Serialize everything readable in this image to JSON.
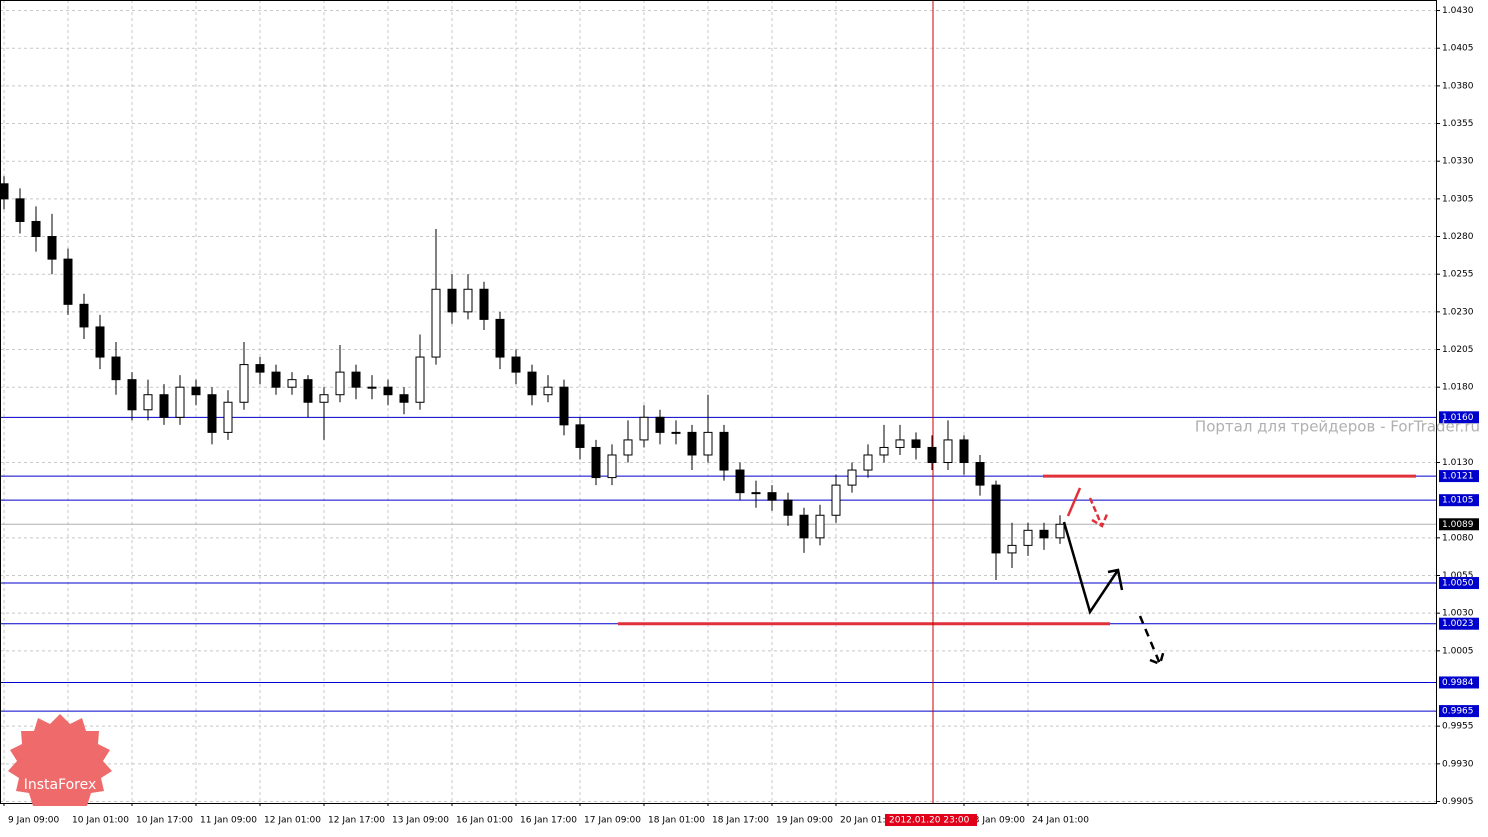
{
  "chart_data": {
    "type": "candlestick",
    "cursor_label": "2012.01.20 23:00",
    "watermark": "Портал для трейдеров - ForTrader.ru",
    "logo": "InstaForex",
    "categories": [
      "9 Jan 09:00",
      null,
      null,
      null,
      "10 Jan 01:00",
      null,
      null,
      null,
      "10 Jan 17:00",
      null,
      null,
      null,
      "11 Jan 09:00",
      null,
      null,
      null,
      "12 Jan 01:00",
      null,
      null,
      null,
      "12 Jan 17:00",
      null,
      null,
      null,
      "13 Jan 09:00",
      null,
      null,
      null,
      "16 Jan 01:00",
      null,
      null,
      null,
      "16 Jan 17:00",
      null,
      null,
      null,
      "17 Jan 09:00",
      null,
      null,
      null,
      "18 Jan 01:00",
      null,
      null,
      null,
      "18 Jan 17:00",
      null,
      null,
      null,
      "19 Jan 09:00",
      null,
      null,
      null,
      "20 Jan 01:00",
      null,
      null,
      null,
      null,
      null,
      null,
      null,
      "23 Jan 09:00",
      null,
      null,
      null,
      "24 Jan 01:00",
      null,
      null
    ],
    "open": [
      1.0315,
      1.0305,
      1.029,
      1.028,
      1.0265,
      1.0235,
      1.022,
      1.02,
      1.0185,
      1.0165,
      1.0175,
      1.016,
      1.018,
      1.0175,
      1.015,
      1.017,
      1.0195,
      1.019,
      1.018,
      1.0185,
      1.017,
      1.0175,
      1.019,
      1.018,
      1.018,
      1.0175,
      1.017,
      1.02,
      1.0245,
      1.023,
      1.0245,
      1.0225,
      1.02,
      1.019,
      1.0175,
      1.018,
      1.0155,
      1.014,
      1.012,
      1.0135,
      1.0145,
      1.016,
      1.015,
      1.015,
      1.0135,
      1.015,
      1.0125,
      1.011,
      1.011,
      1.0105,
      1.0095,
      1.008,
      1.0095,
      1.0115,
      1.0125,
      1.0135,
      1.014,
      1.0145,
      1.014,
      1.013,
      1.0145,
      1.013,
      1.0115,
      1.007,
      1.0075,
      1.0085,
      1.008
    ],
    "high": [
      1.032,
      1.0312,
      1.03,
      1.0295,
      1.0272,
      1.0242,
      1.0228,
      1.021,
      1.019,
      1.0185,
      1.0182,
      1.0188,
      1.0185,
      1.018,
      1.0178,
      1.021,
      1.02,
      1.0195,
      1.019,
      1.0188,
      1.018,
      1.0208,
      1.0195,
      1.0188,
      1.0185,
      1.018,
      1.0215,
      1.0285,
      1.0255,
      1.0255,
      1.025,
      1.023,
      1.0205,
      1.0195,
      1.0188,
      1.0185,
      1.016,
      1.0145,
      1.0142,
      1.0158,
      1.0168,
      1.0165,
      1.0158,
      1.0155,
      1.0175,
      1.0155,
      1.013,
      1.0118,
      1.0115,
      1.011,
      1.01,
      1.0102,
      1.0122,
      1.013,
      1.0142,
      1.0155,
      1.0155,
      1.015,
      1.0148,
      1.0158,
      1.0148,
      1.0135,
      1.0118,
      1.009,
      1.009,
      1.009,
      1.0095
    ],
    "low": [
      1.0298,
      1.0282,
      1.027,
      1.0255,
      1.0228,
      1.0212,
      1.0192,
      1.0175,
      1.0158,
      1.0158,
      1.0155,
      1.0155,
      1.0168,
      1.0142,
      1.0145,
      1.0165,
      1.0182,
      1.0175,
      1.0175,
      1.016,
      1.0145,
      1.017,
      1.0172,
      1.0172,
      1.0168,
      1.0162,
      1.0165,
      1.0195,
      1.0222,
      1.0225,
      1.0218,
      1.0192,
      1.0182,
      1.0168,
      1.017,
      1.0148,
      1.0132,
      1.0115,
      1.0115,
      1.013,
      1.014,
      1.0142,
      1.0142,
      1.0125,
      1.013,
      1.0118,
      1.0105,
      1.01,
      1.0098,
      1.0088,
      1.007,
      1.0075,
      1.009,
      1.011,
      1.012,
      1.013,
      1.0135,
      1.0132,
      1.0125,
      1.0125,
      1.0122,
      1.0108,
      1.0052,
      1.006,
      1.0068,
      1.0072,
      1.0076
    ],
    "close": [
      1.0305,
      1.029,
      1.028,
      1.0265,
      1.0235,
      1.022,
      1.02,
      1.0185,
      1.0165,
      1.0175,
      1.016,
      1.018,
      1.0175,
      1.015,
      1.017,
      1.0195,
      1.019,
      1.018,
      1.0185,
      1.017,
      1.0175,
      1.019,
      1.018,
      1.018,
      1.0175,
      1.017,
      1.02,
      1.0245,
      1.023,
      1.0245,
      1.0225,
      1.02,
      1.019,
      1.0175,
      1.018,
      1.0155,
      1.014,
      1.012,
      1.0135,
      1.0145,
      1.016,
      1.015,
      1.015,
      1.0135,
      1.015,
      1.0125,
      1.011,
      1.011,
      1.0105,
      1.0095,
      1.008,
      1.0095,
      1.0115,
      1.0125,
      1.0135,
      1.014,
      1.0145,
      1.014,
      1.013,
      1.0145,
      1.013,
      1.0115,
      1.007,
      1.0075,
      1.0085,
      1.008,
      1.0089
    ],
    "ylim": [
      0.9904,
      1.0437
    ],
    "yticks": [
      {
        "value": 1.043,
        "label": "1.0430"
      },
      {
        "value": 1.0405,
        "label": "1.0405"
      },
      {
        "value": 1.038,
        "label": "1.0380"
      },
      {
        "value": 1.0355,
        "label": "1.0355"
      },
      {
        "value": 1.033,
        "label": "1.0330"
      },
      {
        "value": 1.0305,
        "label": "1.0305"
      },
      {
        "value": 1.028,
        "label": "1.0280"
      },
      {
        "value": 1.0255,
        "label": "1.0255"
      },
      {
        "value": 1.023,
        "label": "1.0230"
      },
      {
        "value": 1.0205,
        "label": "1.0205"
      },
      {
        "value": 1.018,
        "label": "1.0180"
      },
      {
        "value": 1.013,
        "label": "1.0130"
      },
      {
        "value": 1.008,
        "label": "1.0080"
      },
      {
        "value": 1.0055,
        "label": "1.0055"
      },
      {
        "value": 1.003,
        "label": "1.0030"
      },
      {
        "value": 1.0005,
        "label": "1.0005"
      },
      {
        "value": 0.9955,
        "label": "0.9955"
      },
      {
        "value": 0.993,
        "label": "0.9930"
      },
      {
        "value": 0.9905,
        "label": "0.9905"
      }
    ],
    "levels": [
      {
        "value": 1.016,
        "label": "1.0160"
      },
      {
        "value": 1.0121,
        "label": "1.0121"
      },
      {
        "value": 1.0105,
        "label": "1.0105"
      },
      {
        "value": 1.005,
        "label": "1.0050"
      },
      {
        "value": 1.0023,
        "label": "1.0023"
      },
      {
        "value": 0.9984,
        "label": "0.9984"
      },
      {
        "value": 0.9965,
        "label": "0.9965"
      }
    ],
    "current_price": {
      "value": 1.0089,
      "label": "1.0089"
    },
    "red_lines": [
      1.0121,
      1.0023
    ],
    "grid": true
  }
}
